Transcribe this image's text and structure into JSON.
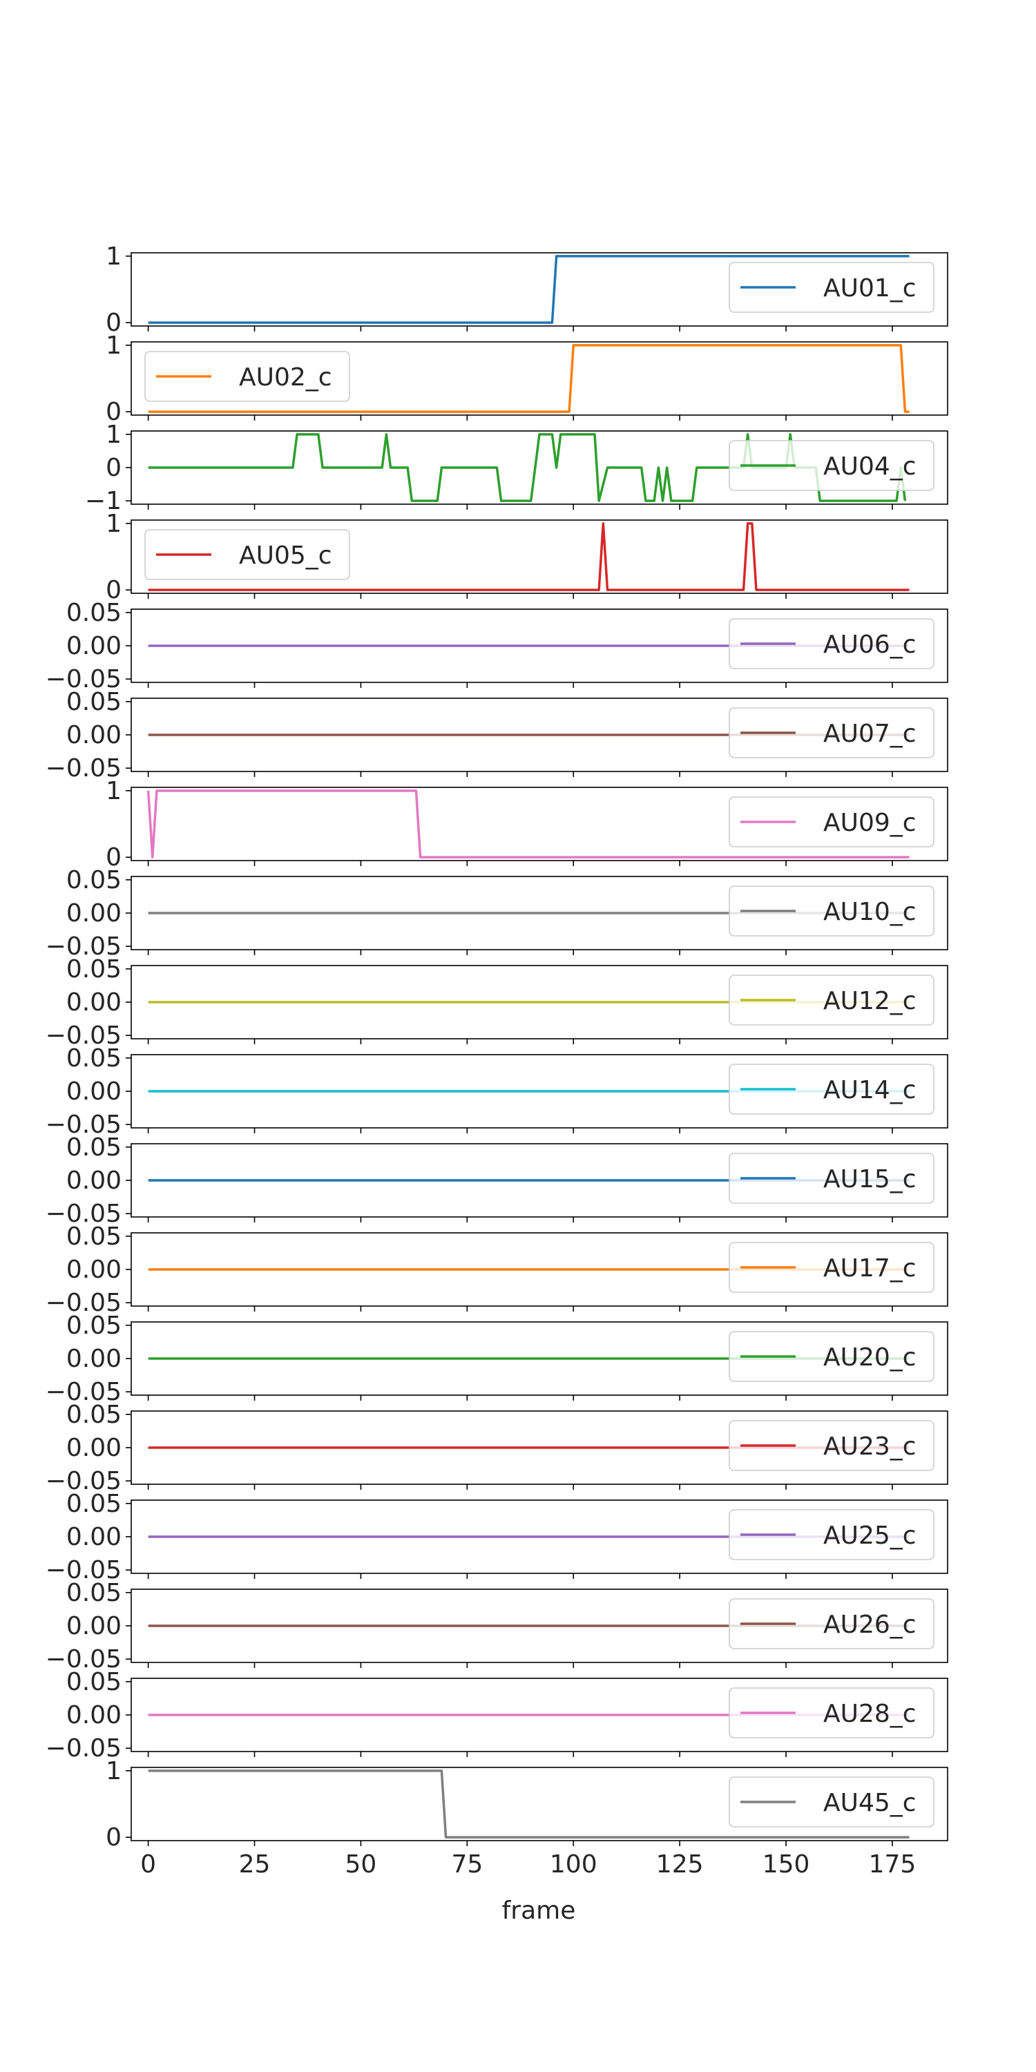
{
  "figure": {
    "xlabel": "frame",
    "x_ticks": [
      0,
      25,
      50,
      75,
      100,
      125,
      150,
      175
    ],
    "xlim": [
      -4,
      188
    ]
  },
  "chart_data": [
    {
      "type": "line",
      "name": "AU01_c",
      "color": "#1f77b4",
      "ylim": [
        -0.05,
        1.05
      ],
      "yticks": [
        "0",
        "1"
      ],
      "ytick_values": [
        0,
        1
      ],
      "legend": "right",
      "segments": [
        [
          0,
          0
        ],
        [
          95,
          0
        ],
        [
          96,
          1
        ],
        [
          179,
          1
        ]
      ]
    },
    {
      "type": "line",
      "name": "AU02_c",
      "color": "#ff7f0e",
      "ylim": [
        -0.05,
        1.05
      ],
      "yticks": [
        "0",
        "1"
      ],
      "ytick_values": [
        0,
        1
      ],
      "legend": "left",
      "segments": [
        [
          0,
          0
        ],
        [
          99,
          0
        ],
        [
          100,
          1
        ],
        [
          177,
          1
        ],
        [
          178,
          0
        ],
        [
          179,
          0
        ]
      ]
    },
    {
      "type": "line",
      "name": "AU04_c",
      "color": "#2ca02c",
      "ylim": [
        -1.1,
        1.1
      ],
      "yticks": [
        "−1",
        "0",
        "1"
      ],
      "ytick_values": [
        -1,
        0,
        1
      ],
      "legend": "right",
      "segments": [
        [
          0,
          0
        ],
        [
          34,
          0
        ],
        [
          35,
          1
        ],
        [
          40,
          1
        ],
        [
          41,
          0
        ],
        [
          55,
          0
        ],
        [
          56,
          1
        ],
        [
          57,
          0
        ],
        [
          61,
          0
        ],
        [
          62,
          -1
        ],
        [
          68,
          -1
        ],
        [
          69,
          0
        ],
        [
          82,
          0
        ],
        [
          83,
          -1
        ],
        [
          90,
          -1
        ],
        [
          92,
          1
        ],
        [
          95,
          1
        ],
        [
          96,
          0
        ],
        [
          97,
          1
        ],
        [
          105,
          1
        ],
        [
          106,
          -1
        ],
        [
          108,
          0
        ],
        [
          116,
          0
        ],
        [
          117,
          -1
        ],
        [
          119,
          -1
        ],
        [
          120,
          0
        ],
        [
          121,
          -1
        ],
        [
          122,
          0
        ],
        [
          123,
          -1
        ],
        [
          128,
          -1
        ],
        [
          129,
          0
        ],
        [
          140,
          0
        ],
        [
          141,
          1
        ],
        [
          142,
          0
        ],
        [
          150,
          0
        ],
        [
          151,
          1
        ],
        [
          152,
          0
        ],
        [
          157,
          0
        ],
        [
          158,
          -1
        ],
        [
          176,
          -1
        ],
        [
          177,
          0
        ],
        [
          178,
          -1
        ]
      ]
    },
    {
      "type": "line",
      "name": "AU05_c",
      "color": "#d62728",
      "ylim": [
        -0.05,
        1.05
      ],
      "yticks": [
        "0",
        "1"
      ],
      "ytick_values": [
        0,
        1
      ],
      "legend": "left",
      "segments": [
        [
          0,
          0
        ],
        [
          106,
          0
        ],
        [
          107,
          1
        ],
        [
          108,
          0
        ],
        [
          140,
          0
        ],
        [
          141,
          1
        ],
        [
          142,
          1
        ],
        [
          143,
          0
        ],
        [
          179,
          0
        ]
      ]
    },
    {
      "type": "line",
      "name": "AU06_c",
      "color": "#9467bd",
      "ylim": [
        -0.055,
        0.055
      ],
      "yticks": [
        "−0.05",
        "0.00",
        "0.05"
      ],
      "ytick_values": [
        -0.05,
        0,
        0.05
      ],
      "legend": "right",
      "segments": [
        [
          0,
          0
        ],
        [
          179,
          0
        ]
      ]
    },
    {
      "type": "line",
      "name": "AU07_c",
      "color": "#8c564b",
      "ylim": [
        -0.055,
        0.055
      ],
      "yticks": [
        "−0.05",
        "0.00",
        "0.05"
      ],
      "ytick_values": [
        -0.05,
        0,
        0.05
      ],
      "legend": "right",
      "segments": [
        [
          0,
          0
        ],
        [
          179,
          0
        ]
      ]
    },
    {
      "type": "line",
      "name": "AU09_c",
      "color": "#e377c2",
      "ylim": [
        -0.05,
        1.05
      ],
      "yticks": [
        "0",
        "1"
      ],
      "ytick_values": [
        0,
        1
      ],
      "legend": "right",
      "segments": [
        [
          0,
          1
        ],
        [
          1,
          0
        ],
        [
          2,
          1
        ],
        [
          63,
          1
        ],
        [
          64,
          0
        ],
        [
          179,
          0
        ]
      ]
    },
    {
      "type": "line",
      "name": "AU10_c",
      "color": "#7f7f7f",
      "ylim": [
        -0.055,
        0.055
      ],
      "yticks": [
        "−0.05",
        "0.00",
        "0.05"
      ],
      "ytick_values": [
        -0.05,
        0,
        0.05
      ],
      "legend": "right",
      "segments": [
        [
          0,
          0
        ],
        [
          179,
          0
        ]
      ]
    },
    {
      "type": "line",
      "name": "AU12_c",
      "color": "#bcbd22",
      "ylim": [
        -0.055,
        0.055
      ],
      "yticks": [
        "−0.05",
        "0.00",
        "0.05"
      ],
      "ytick_values": [
        -0.05,
        0,
        0.05
      ],
      "legend": "right",
      "segments": [
        [
          0,
          0
        ],
        [
          179,
          0
        ]
      ]
    },
    {
      "type": "line",
      "name": "AU14_c",
      "color": "#17becf",
      "ylim": [
        -0.055,
        0.055
      ],
      "yticks": [
        "−0.05",
        "0.00",
        "0.05"
      ],
      "ytick_values": [
        -0.05,
        0,
        0.05
      ],
      "legend": "right",
      "segments": [
        [
          0,
          0
        ],
        [
          179,
          0
        ]
      ]
    },
    {
      "type": "line",
      "name": "AU15_c",
      "color": "#1f77b4",
      "ylim": [
        -0.055,
        0.055
      ],
      "yticks": [
        "−0.05",
        "0.00",
        "0.05"
      ],
      "ytick_values": [
        -0.05,
        0,
        0.05
      ],
      "legend": "right",
      "segments": [
        [
          0,
          0
        ],
        [
          179,
          0
        ]
      ]
    },
    {
      "type": "line",
      "name": "AU17_c",
      "color": "#ff7f0e",
      "ylim": [
        -0.055,
        0.055
      ],
      "yticks": [
        "−0.05",
        "0.00",
        "0.05"
      ],
      "ytick_values": [
        -0.05,
        0,
        0.05
      ],
      "legend": "right",
      "segments": [
        [
          0,
          0
        ],
        [
          179,
          0
        ]
      ]
    },
    {
      "type": "line",
      "name": "AU20_c",
      "color": "#2ca02c",
      "ylim": [
        -0.055,
        0.055
      ],
      "yticks": [
        "−0.05",
        "0.00",
        "0.05"
      ],
      "ytick_values": [
        -0.05,
        0,
        0.05
      ],
      "legend": "right",
      "segments": [
        [
          0,
          0
        ],
        [
          179,
          0
        ]
      ]
    },
    {
      "type": "line",
      "name": "AU23_c",
      "color": "#d62728",
      "ylim": [
        -0.055,
        0.055
      ],
      "yticks": [
        "−0.05",
        "0.00",
        "0.05"
      ],
      "ytick_values": [
        -0.05,
        0,
        0.05
      ],
      "legend": "right",
      "segments": [
        [
          0,
          0
        ],
        [
          179,
          0
        ]
      ]
    },
    {
      "type": "line",
      "name": "AU25_c",
      "color": "#9467bd",
      "ylim": [
        -0.055,
        0.055
      ],
      "yticks": [
        "−0.05",
        "0.00",
        "0.05"
      ],
      "ytick_values": [
        -0.05,
        0,
        0.05
      ],
      "legend": "right",
      "segments": [
        [
          0,
          0
        ],
        [
          179,
          0
        ]
      ]
    },
    {
      "type": "line",
      "name": "AU26_c",
      "color": "#8c564b",
      "ylim": [
        -0.055,
        0.055
      ],
      "yticks": [
        "−0.05",
        "0.00",
        "0.05"
      ],
      "ytick_values": [
        -0.05,
        0,
        0.05
      ],
      "legend": "right",
      "segments": [
        [
          0,
          0
        ],
        [
          179,
          0
        ]
      ]
    },
    {
      "type": "line",
      "name": "AU28_c",
      "color": "#e377c2",
      "ylim": [
        -0.055,
        0.055
      ],
      "yticks": [
        "−0.05",
        "0.00",
        "0.05"
      ],
      "ytick_values": [
        -0.05,
        0,
        0.05
      ],
      "legend": "right",
      "segments": [
        [
          0,
          0
        ],
        [
          179,
          0
        ]
      ]
    },
    {
      "type": "line",
      "name": "AU45_c",
      "color": "#7f7f7f",
      "ylim": [
        -0.05,
        1.05
      ],
      "yticks": [
        "0",
        "1"
      ],
      "ytick_values": [
        0,
        1
      ],
      "legend": "right",
      "segments": [
        [
          0,
          1
        ],
        [
          69,
          1
        ],
        [
          70,
          0
        ],
        [
          179,
          0
        ]
      ]
    }
  ]
}
